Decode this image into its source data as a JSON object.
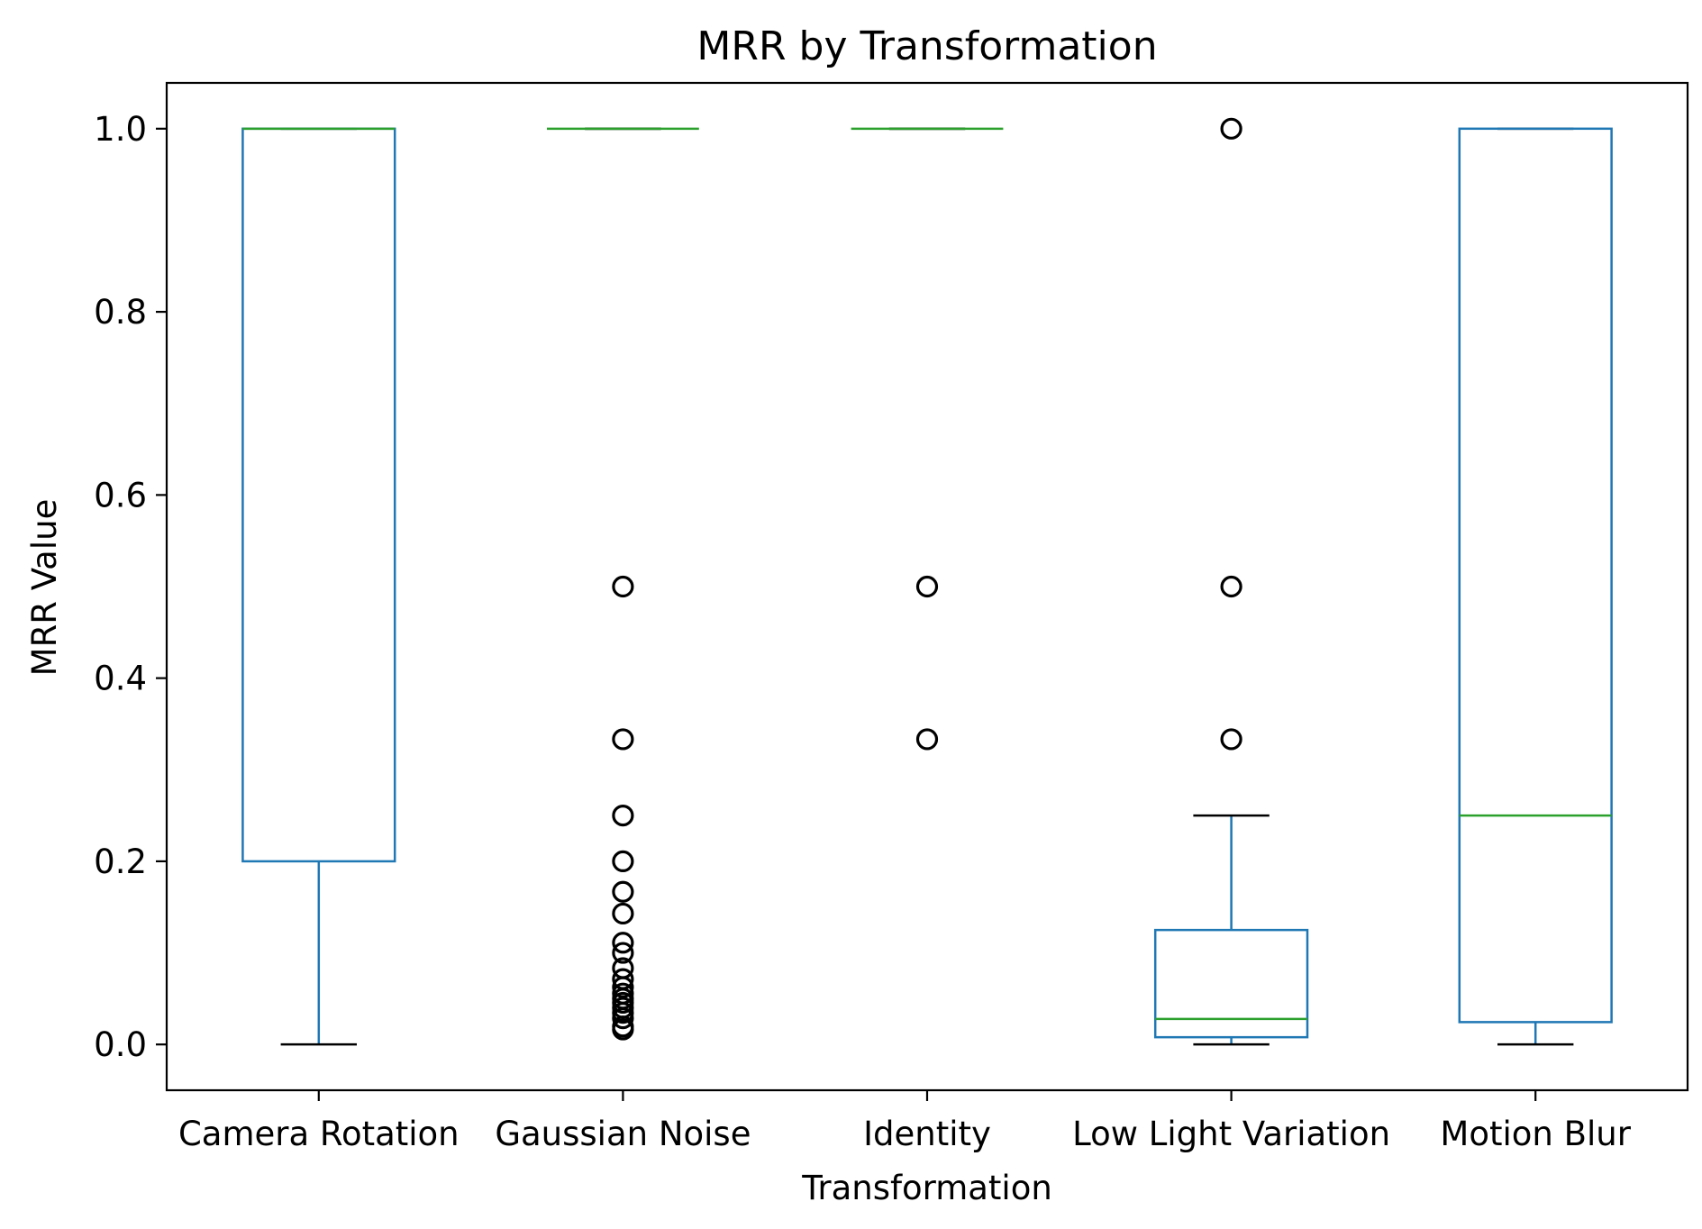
{
  "chart_data": {
    "type": "box",
    "title": "MRR by Transformation",
    "xlabel": "Transformation",
    "ylabel": "MRR Value",
    "ylim": [
      -0.05,
      1.05
    ],
    "yticks": [
      "0.0",
      "0.2",
      "0.4",
      "0.6",
      "0.8",
      "1.0"
    ],
    "ytick_values": [
      0.0,
      0.2,
      0.4,
      0.6,
      0.8,
      1.0
    ],
    "grid": false,
    "colors": {
      "box": "#1f77b4",
      "median": "#2ca02c",
      "cap": "#000000",
      "flier": "#000000"
    },
    "categories": [
      "Camera Rotation",
      "Gaussian Noise",
      "Identity",
      "Low Light Variation",
      "Motion Blur"
    ],
    "boxes": [
      {
        "name": "Camera Rotation",
        "whisker_low": 0.0,
        "q1": 0.2,
        "median": 1.0,
        "q3": 1.0,
        "whisker_high": 1.0,
        "fliers": []
      },
      {
        "name": "Gaussian Noise",
        "whisker_low": 1.0,
        "q1": 1.0,
        "median": 1.0,
        "q3": 1.0,
        "whisker_high": 1.0,
        "fliers": [
          0.5,
          0.3333,
          0.25,
          0.2,
          0.1667,
          0.1429,
          0.1111,
          0.1,
          0.0833,
          0.0714,
          0.0625,
          0.0556,
          0.05,
          0.0455,
          0.04,
          0.0345,
          0.0286,
          0.0196,
          0.0164
        ]
      },
      {
        "name": "Identity",
        "whisker_low": 1.0,
        "q1": 1.0,
        "median": 1.0,
        "q3": 1.0,
        "whisker_high": 1.0,
        "fliers": [
          0.5,
          0.3333
        ]
      },
      {
        "name": "Low Light Variation",
        "whisker_low": 0.0,
        "q1": 0.0079,
        "median": 0.0278,
        "q3": 0.125,
        "whisker_high": 0.25,
        "fliers": [
          1.0,
          0.5,
          0.3333
        ]
      },
      {
        "name": "Motion Blur",
        "whisker_low": 0.0,
        "q1": 0.0244,
        "median": 0.25,
        "q3": 1.0,
        "whisker_high": 1.0,
        "fliers": []
      }
    ]
  }
}
